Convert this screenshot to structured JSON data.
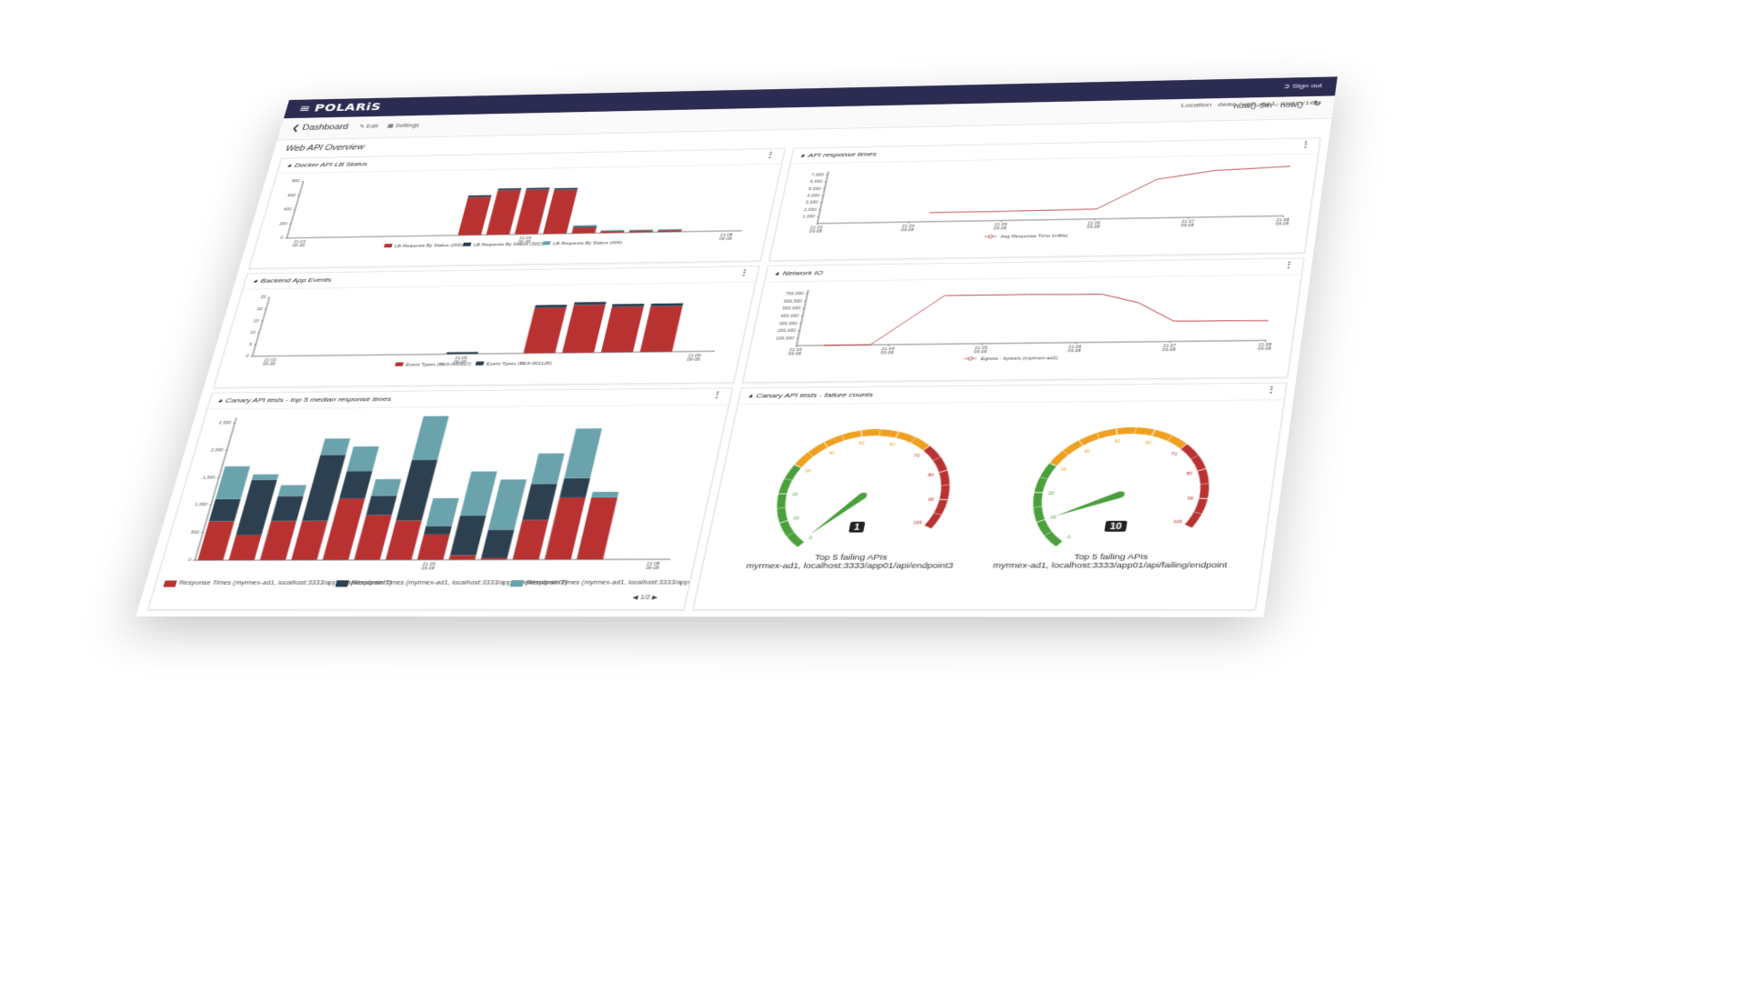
{
  "app": {
    "brand": "POLARiS",
    "signout_label": "Sign out"
  },
  "toolbar": {
    "back_label": "Dashboard",
    "edit_label": "Edit",
    "settings_label": "Settings",
    "time_range": "now()-5m - now()",
    "location_label": "Location",
    "location_value": "demo/web-api-overview"
  },
  "page": {
    "title": "Web API Overview"
  },
  "colors": {
    "red": "#b93232",
    "navy": "#2d4050",
    "teal": "#6aa3ac",
    "green": "#4aa03a",
    "orange": "#f0a020",
    "topbar": "#2c2c52"
  },
  "time_ticks": [
    "21:03\n06-08",
    "21:04\n06-08",
    "21:05\n06-08",
    "21:06\n06-08",
    "21:07\n06-08",
    "21:08\n06-08"
  ],
  "panels": {
    "lb_status": {
      "title": "Docker API LB Status",
      "chart_data": {
        "type": "bar",
        "stacked": true,
        "categories": [
          "1",
          "2",
          "3",
          "4",
          "5",
          "6",
          "7",
          "8",
          "9",
          "10",
          "11",
          "12",
          "13",
          "14",
          "15",
          "16"
        ],
        "x_ticks": [
          {
            "i": 0,
            "label": "21:03 06-08"
          },
          {
            "i": 8,
            "label": "21:05 06-08"
          },
          {
            "i": 15,
            "label": "21:08 06-08"
          }
        ],
        "series": [
          {
            "name": "LB Requests By Status (200)",
            "values": [
              0,
              0,
              0,
              0,
              0,
              0,
              530,
              620,
              620,
              610,
              80,
              20,
              20,
              20,
              0,
              0
            ]
          },
          {
            "name": "LB Requests By Status (302)",
            "values": [
              0,
              0,
              0,
              0,
              0,
              0,
              25,
              25,
              25,
              25,
              12,
              8,
              8,
              8,
              0,
              0
            ]
          },
          {
            "name": "LB Requests By Status (404)",
            "values": [
              0,
              0,
              0,
              0,
              0,
              0,
              0,
              0,
              0,
              0,
              20,
              8,
              8,
              8,
              0,
              0
            ]
          }
        ],
        "y_ticks": [
          "0",
          "200",
          "400",
          "600",
          "800"
        ],
        "ylim": [
          0,
          800
        ]
      }
    },
    "response_times": {
      "title": "API response times",
      "chart_data": {
        "type": "line",
        "x_ticks": [
          "21:03 06-08",
          "21:04 06-08",
          "21:05 06-08",
          "21:06 06-08",
          "21:07 06-08",
          "21:08 06-08"
        ],
        "series": [
          {
            "name": "Avg Response Time (millis)",
            "points": [
              [
                1.2,
                1300
              ],
              [
                2.0,
                1300
              ],
              [
                3.0,
                1400
              ],
              [
                3.6,
                5500
              ],
              [
                4.2,
                6600
              ],
              [
                5.0,
                7000
              ]
            ]
          }
        ],
        "y_ticks": [
          "1,000",
          "2,000",
          "3,000",
          "4,000",
          "5,000",
          "6,000",
          "7,000"
        ],
        "ylim": [
          0,
          7500
        ],
        "xlim": [
          0,
          5
        ]
      }
    },
    "backend_events": {
      "title": "Backend App Events",
      "chart_data": {
        "type": "bar",
        "stacked": true,
        "categories": [
          "1",
          "2",
          "3",
          "4",
          "5",
          "6",
          "7",
          "8",
          "9",
          "10",
          "11",
          "12"
        ],
        "x_ticks": [
          {
            "i": 0,
            "label": "21:03 06-08"
          },
          {
            "i": 5,
            "label": "21:05 06-08"
          },
          {
            "i": 11,
            "label": "21:08 06-08"
          }
        ],
        "series": [
          {
            "name": "Event Types (BEA-000627)",
            "values": [
              0,
              0,
              0,
              0,
              0,
              0,
              0,
              19,
              20,
              19,
              19,
              0
            ]
          },
          {
            "name": "Event Types (BEA-001128)",
            "values": [
              0,
              0,
              0,
              0,
              0,
              0.8,
              0,
              1.2,
              1.2,
              1.2,
              1.2,
              0
            ]
          }
        ],
        "y_ticks": [
          "0",
          "5",
          "10",
          "15",
          "20",
          "25"
        ],
        "ylim": [
          0,
          25
        ]
      }
    },
    "network_io": {
      "title": "Network IO",
      "chart_data": {
        "type": "line",
        "x_ticks": [
          "21:03 06-08",
          "21:04 06-08",
          "21:05 06-08",
          "21:06 06-08",
          "21:07 06-08",
          "21:08 06-08"
        ],
        "series": [
          {
            "name": "Egress - bytes/s (myrmex-ad1)",
            "points": [
              [
                0.3,
                0
              ],
              [
                0.8,
                0
              ],
              [
                1.5,
                650000
              ],
              [
                2.4,
                650000
              ],
              [
                3.2,
                640000
              ],
              [
                3.6,
                520000
              ],
              [
                4.0,
                270000
              ],
              [
                5.0,
                260000
              ]
            ]
          }
        ],
        "y_ticks": [
          "100,000",
          "200,000",
          "300,000",
          "400,000",
          "500,000",
          "600,000",
          "700,000"
        ],
        "ylim": [
          0,
          750000
        ],
        "xlim": [
          0,
          5
        ]
      }
    },
    "canary_median": {
      "title": "Canary API tests - top 5 median response times",
      "pager": "1/2",
      "chart_data": {
        "type": "bar",
        "stacked": true,
        "categories": [
          "1",
          "2",
          "3",
          "4",
          "5",
          "6",
          "7",
          "8",
          "9",
          "10",
          "11",
          "12",
          "13",
          "14",
          "15"
        ],
        "x_ticks": [
          {
            "i": 7,
            "label": "21:05 06-08"
          },
          {
            "i": 14,
            "label": "21:08 06-08"
          }
        ],
        "series": [
          {
            "name": "Response Times (myrmex-ad1, localhost:3333/app01/api/endpoint1)",
            "values": [
              700,
              450,
              700,
              700,
              1100,
              800,
              700,
              450,
              80,
              30,
              700,
              1100,
              1100,
              0,
              0
            ]
          },
          {
            "name": "Response Times (myrmex-ad1, localhost:3333/app01/api/endpoint2)",
            "values": [
              400,
              1000,
              450,
              1200,
              500,
              350,
              1100,
              150,
              700,
              500,
              650,
              350,
              0,
              0,
              0
            ]
          },
          {
            "name": "Response Times (myrmex-ad1, localhost:3333/app)",
            "values": [
              600,
              100,
              200,
              300,
              450,
              300,
              800,
              500,
              800,
              900,
              550,
              900,
              100,
              0,
              0
            ]
          }
        ],
        "y_ticks": [
          "0",
          "500",
          "1,000",
          "1,500",
          "2,000",
          "2,500"
        ],
        "ylim": [
          0,
          2600
        ]
      }
    },
    "failure_counts": {
      "title": "Canary API tests - failure counts",
      "gauges": [
        {
          "value": 1,
          "label": "Top 5 failing APIs",
          "sublabel": "myrmex-ad1, localhost:3333/app01/api/endpoint3"
        },
        {
          "value": 10,
          "label": "Top 5 failing APIs",
          "sublabel": "myrmex-ad1, localhost:3333/app01/api/failing/endpoint"
        }
      ],
      "gauge_ticks": [
        "0",
        "10",
        "20",
        "30",
        "40",
        "50",
        "60",
        "70",
        "80",
        "90",
        "100"
      ]
    }
  }
}
